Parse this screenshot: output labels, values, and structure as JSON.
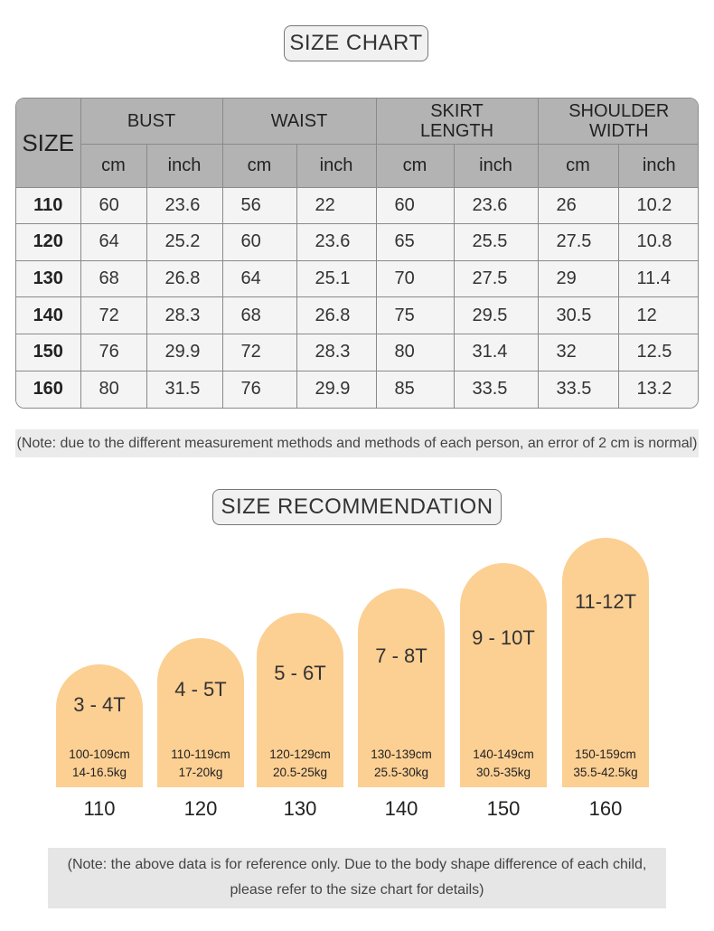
{
  "size_chart_title": "SIZE CHART",
  "table": {
    "size_header": "SIZE",
    "groups": [
      "BUST",
      "WAIST",
      "SKIRT\nLENGTH",
      "SHOULDER\nWIDTH"
    ],
    "group_lines": [
      [
        "BUST"
      ],
      [
        "WAIST"
      ],
      [
        "SKIRT",
        "LENGTH"
      ],
      [
        "SHOULDER",
        "WIDTH"
      ]
    ],
    "units": [
      "cm",
      "inch",
      "cm",
      "inch",
      "cm",
      "inch",
      "cm",
      "inch"
    ],
    "rows": [
      {
        "size": "110",
        "values": [
          "60",
          "23.6",
          "56",
          "22",
          "60",
          "23.6",
          "26",
          "10.2"
        ]
      },
      {
        "size": "120",
        "values": [
          "64",
          "25.2",
          "60",
          "23.6",
          "65",
          "25.5",
          "27.5",
          "10.8"
        ]
      },
      {
        "size": "130",
        "values": [
          "68",
          "26.8",
          "64",
          "25.1",
          "70",
          "27.5",
          "29",
          "11.4"
        ]
      },
      {
        "size": "140",
        "values": [
          "72",
          "28.3",
          "68",
          "26.8",
          "75",
          "29.5",
          "30.5",
          "12"
        ]
      },
      {
        "size": "150",
        "values": [
          "76",
          "29.9",
          "72",
          "28.3",
          "80",
          "31.4",
          "32",
          "12.5"
        ]
      },
      {
        "size": "160",
        "values": [
          "80",
          "31.5",
          "76",
          "29.9",
          "85",
          "33.5",
          "33.5",
          "13.2"
        ]
      }
    ]
  },
  "note1": "(Note: due to the different measurement methods and methods of each person, an error of 2 cm is normal)",
  "size_rec_title": "SIZE RECOMMENDATION",
  "recommendations": [
    {
      "age": "3 - 4T",
      "height": "100-109cm",
      "weight": "14-16.5kg",
      "size": "110"
    },
    {
      "age": "4 - 5T",
      "height": "110-119cm",
      "weight": "17-20kg",
      "size": "120"
    },
    {
      "age": "5 - 6T",
      "height": "120-129cm",
      "weight": "20.5-25kg",
      "size": "130"
    },
    {
      "age": "7 - 8T",
      "height": "130-139cm",
      "weight": "25.5-30kg",
      "size": "140"
    },
    {
      "age": "9 - 10T",
      "height": "140-149cm",
      "weight": "30.5-35kg",
      "size": "150"
    },
    {
      "age": "11-12T",
      "height": "150-159cm",
      "weight": "35.5-42.5kg",
      "size": "160"
    }
  ],
  "note2_line1": "(Note: the above data is for reference only. Due to the body shape difference of each child,",
  "note2_line2": "please refer to the size chart for details)",
  "colors": {
    "arch": "#fccf93",
    "header_bg": "#b3b3b3",
    "row_bg": "#f4f4f4",
    "note_bg": "#e6e6e6"
  }
}
